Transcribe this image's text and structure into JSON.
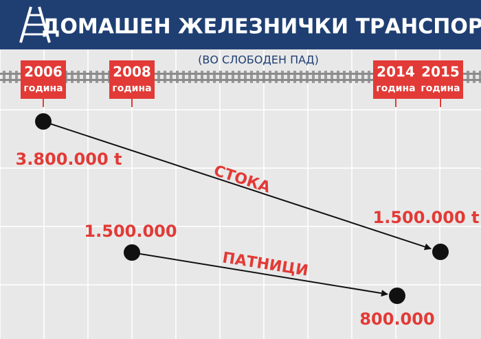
{
  "header": {
    "title": "ДОМАШЕН ЖЕЛЕЗНИЧКИ ТРАНСПОРТ",
    "subtitle": "(ВО СЛОБОДЕН ПАД)"
  },
  "years": [
    {
      "year": "2006",
      "unit": "година"
    },
    {
      "year": "2008",
      "unit": "година"
    },
    {
      "year": "2014",
      "unit": "година"
    },
    {
      "year": "2015",
      "unit": "година"
    }
  ],
  "flows": [
    {
      "name": "СТОКА",
      "from": "3.800.000 t",
      "to": "1.500.000 t"
    },
    {
      "name": "ПАТНИЦИ",
      "from": "1.500.000",
      "to": "800.000"
    }
  ]
}
